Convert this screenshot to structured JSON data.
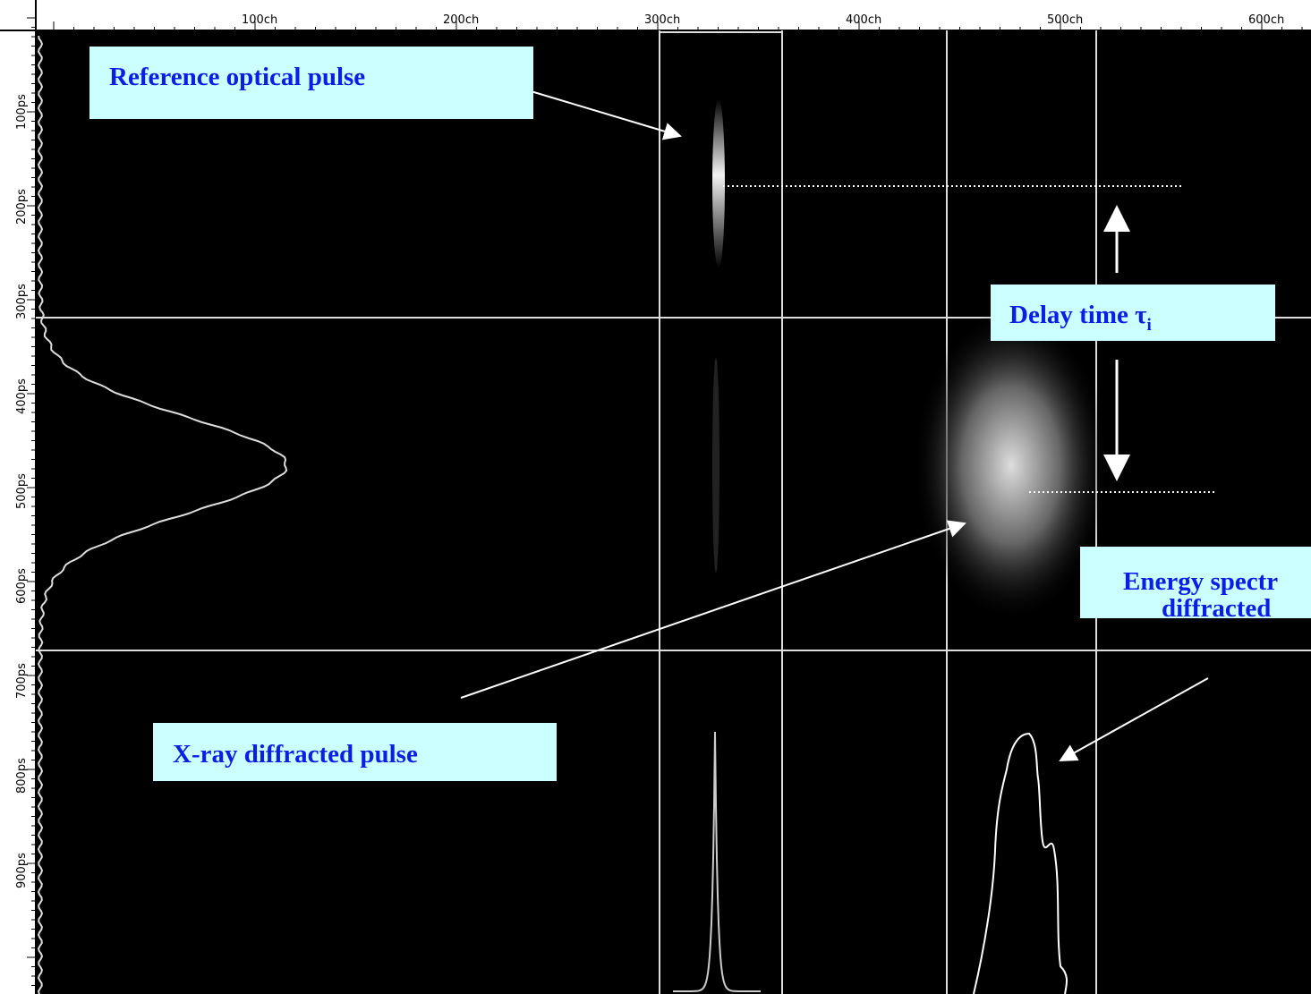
{
  "ruler": {
    "top": {
      "labels": [
        "100ch",
        "200ch",
        "300ch",
        "400ch",
        "500ch",
        "600ch"
      ]
    },
    "left": {
      "labels": [
        "100ps",
        "200ps",
        "300ps",
        "400ps",
        "500ps",
        "600ps",
        "700ps",
        "800ps",
        "900ps"
      ]
    }
  },
  "annotations": {
    "reference": {
      "text": "Reference optical pulse"
    },
    "delay": {
      "text": "Delay time τ",
      "subscript": "i"
    },
    "energy": {
      "lines": [
        "Energy spectr",
        "diffracted"
      ]
    },
    "xray": {
      "text": "X-ray diffracted pulse"
    }
  }
}
